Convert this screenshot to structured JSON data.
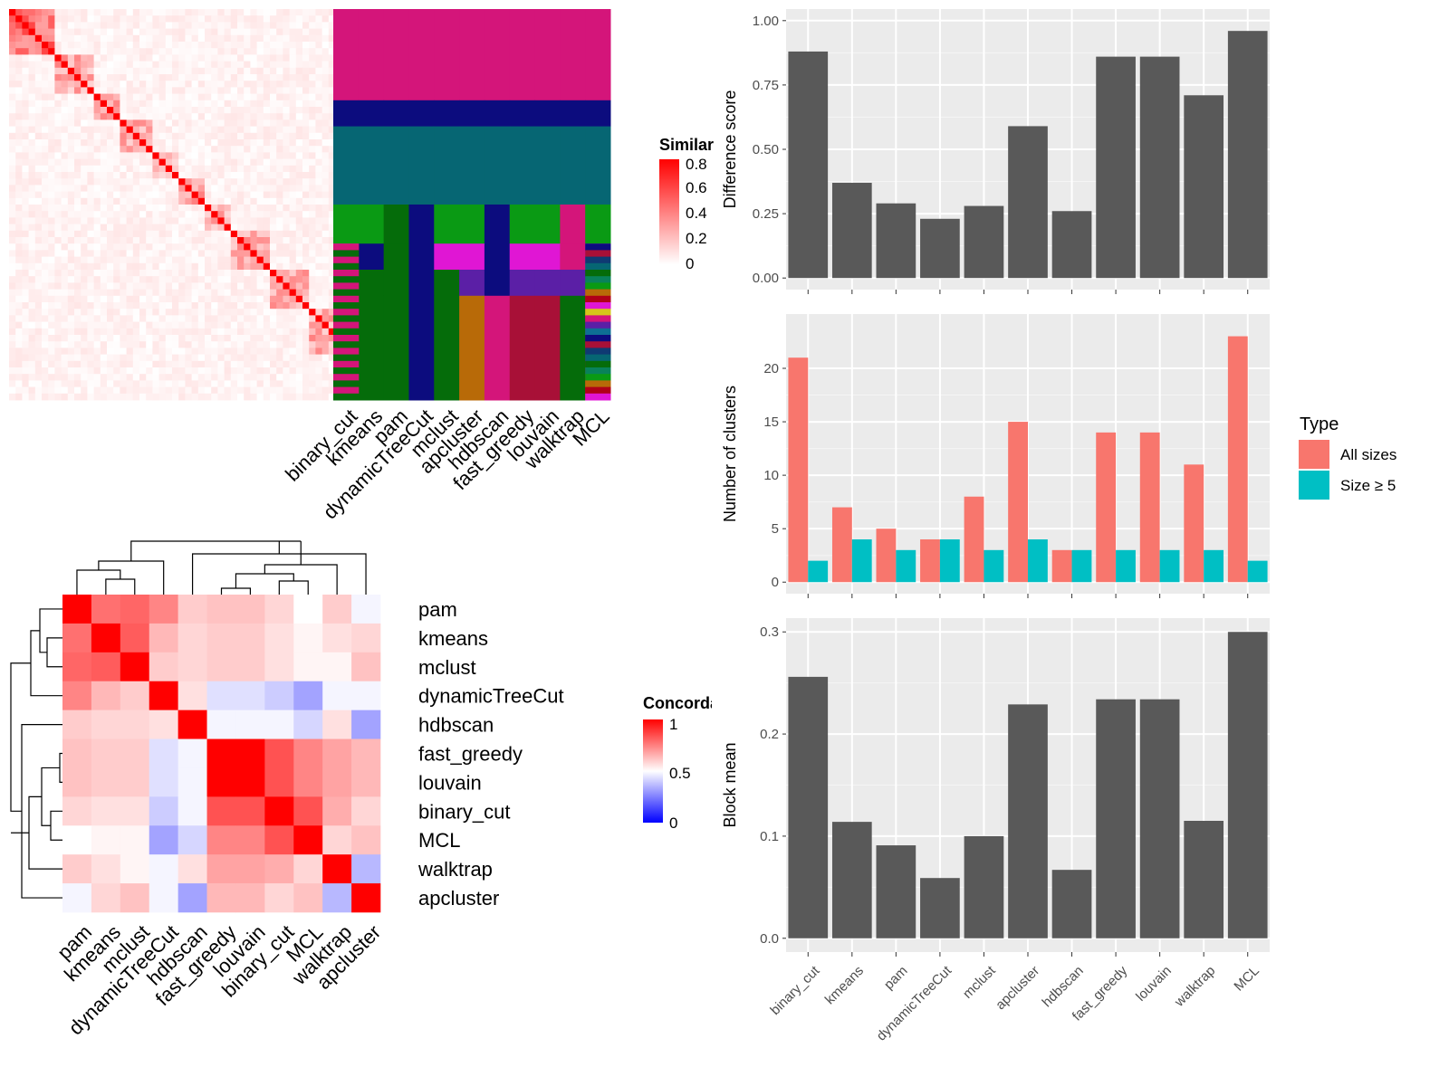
{
  "chart_data": [
    {
      "type": "heatmap",
      "description_ref": "similarity",
      "n_cells": 60,
      "legend": {
        "title": "Similarity",
        "ticks": [
          "0.8",
          "0.6",
          "0.4",
          "0.2",
          "0"
        ]
      },
      "colors": {
        "high": "#ff0000",
        "low": "#ffffff"
      }
    },
    {
      "type": "heatmap",
      "description_ref": "cluster_assignments",
      "columns": [
        "binary_cut",
        "kmeans",
        "pam",
        "dynamicTreeCut",
        "mclust",
        "apcluster",
        "hdbscan",
        "fast_greedy",
        "louvain",
        "walktrap",
        "MCL"
      ],
      "palette": [
        "#d4157a",
        "#0c0c7e",
        "#066673",
        "#0a9a14",
        "#e016d4",
        "#5b1fa6",
        "#a81037",
        "#056c0a",
        "#b86a08",
        "#d6c51a",
        "#0e6f94",
        "#0f3a73",
        "#09825b",
        "#b00018"
      ]
    },
    {
      "type": "bar",
      "description_ref": "difference_score",
      "categories": [
        "binary_cut",
        "kmeans",
        "pam",
        "dynamicTreeCut",
        "mclust",
        "apcluster",
        "hdbscan",
        "fast_greedy",
        "louvain",
        "walktrap",
        "MCL"
      ],
      "values": [
        0.88,
        0.37,
        0.29,
        0.23,
        0.28,
        0.59,
        0.26,
        0.86,
        0.86,
        0.71,
        0.96
      ],
      "ylabel": "Difference score",
      "ylim": [
        0,
        1
      ],
      "yticks": [
        "0.00",
        "0.25",
        "0.50",
        "0.75",
        "1.00"
      ],
      "color": "#595959"
    },
    {
      "type": "bar",
      "description_ref": "number_of_clusters",
      "categories": [
        "binary_cut",
        "kmeans",
        "pam",
        "dynamicTreeCut",
        "mclust",
        "apcluster",
        "hdbscan",
        "fast_greedy",
        "louvain",
        "walktrap",
        "MCL"
      ],
      "series": [
        {
          "name": "All sizes",
          "values": [
            21,
            7,
            5,
            4,
            8,
            15,
            3,
            14,
            14,
            11,
            23
          ],
          "color": "#f8766d"
        },
        {
          "name": "Size ≥ 5",
          "values": [
            2,
            4,
            3,
            4,
            3,
            4,
            3,
            3,
            3,
            3,
            2
          ],
          "color": "#00bfc4"
        }
      ],
      "ylabel": "Number of clusters",
      "ylim": [
        0,
        24
      ],
      "yticks": [
        "0",
        "5",
        "10",
        "15",
        "20"
      ],
      "legend": {
        "title": "Type",
        "position": "right"
      }
    },
    {
      "type": "bar",
      "description_ref": "block_mean",
      "categories": [
        "binary_cut",
        "kmeans",
        "pam",
        "dynamicTreeCut",
        "mclust",
        "apcluster",
        "hdbscan",
        "fast_greedy",
        "louvain",
        "walktrap",
        "MCL"
      ],
      "values": [
        0.256,
        0.114,
        0.091,
        0.059,
        0.1,
        0.229,
        0.067,
        0.234,
        0.234,
        0.115,
        0.3
      ],
      "ylabel": "Block mean",
      "ylim": [
        0,
        0.3
      ],
      "yticks": [
        "0.0",
        "0.1",
        "0.2",
        "0.3"
      ],
      "color": "#595959"
    },
    {
      "type": "heatmap",
      "description_ref": "concordance",
      "rows": [
        "pam",
        "kmeans",
        "mclust",
        "dynamicTreeCut",
        "hdbscan",
        "fast_greedy",
        "louvain",
        "binary_cut",
        "MCL",
        "walktrap",
        "apcluster"
      ],
      "columns": [
        "pam",
        "kmeans",
        "mclust",
        "dynamicTreeCut",
        "hdbscan",
        "fast_greedy",
        "louvain",
        "binary_cut",
        "MCL",
        "walktrap",
        "apcluster"
      ],
      "values": [
        [
          1,
          0.78,
          0.8,
          0.74,
          0.6,
          0.62,
          0.62,
          0.58,
          0.5,
          0.6,
          0.48
        ],
        [
          0.78,
          1,
          0.82,
          0.64,
          0.58,
          0.6,
          0.6,
          0.56,
          0.52,
          0.56,
          0.58
        ],
        [
          0.8,
          0.82,
          1,
          0.6,
          0.58,
          0.6,
          0.6,
          0.56,
          0.52,
          0.52,
          0.62
        ],
        [
          0.74,
          0.64,
          0.6,
          1,
          0.56,
          0.44,
          0.44,
          0.4,
          0.32,
          0.48,
          0.48
        ],
        [
          0.6,
          0.58,
          0.58,
          0.56,
          1,
          0.48,
          0.48,
          0.48,
          0.42,
          0.56,
          0.32
        ],
        [
          0.62,
          0.6,
          0.6,
          0.44,
          0.48,
          1,
          1,
          0.84,
          0.74,
          0.68,
          0.64
        ],
        [
          0.62,
          0.6,
          0.6,
          0.44,
          0.48,
          1,
          1,
          0.84,
          0.74,
          0.68,
          0.64
        ],
        [
          0.58,
          0.56,
          0.56,
          0.4,
          0.48,
          0.84,
          0.84,
          1,
          0.84,
          0.66,
          0.58
        ],
        [
          0.5,
          0.52,
          0.52,
          0.32,
          0.42,
          0.74,
          0.74,
          0.84,
          1,
          0.58,
          0.62
        ],
        [
          0.6,
          0.56,
          0.52,
          0.48,
          0.56,
          0.68,
          0.68,
          0.66,
          0.58,
          1,
          0.36
        ],
        [
          0.48,
          0.58,
          0.62,
          0.48,
          0.32,
          0.64,
          0.64,
          0.58,
          0.62,
          0.36,
          1
        ]
      ],
      "legend": {
        "title": "Concordance",
        "ticks": [
          "1",
          "0.5",
          "0"
        ]
      },
      "colors": {
        "high": "#ff0000",
        "mid": "#ffffff",
        "low": "#0000ff"
      }
    }
  ]
}
